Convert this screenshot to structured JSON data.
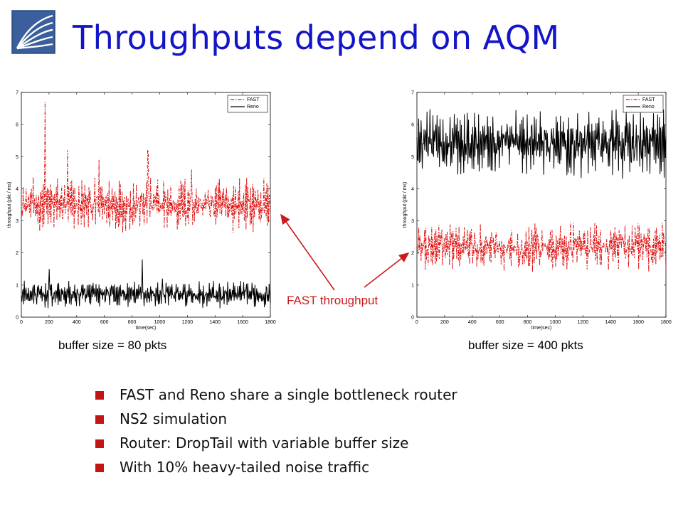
{
  "slide": {
    "title": "Throughputs depend on AQM",
    "annotation": "FAST throughput",
    "captions": [
      "buffer size = 80 pkts",
      "buffer size = 400 pkts"
    ],
    "bullets": [
      "FAST and Reno share a single bottleneck router",
      "NS2 simulation",
      "Router: DropTail with variable buffer size",
      "With 10% heavy-tailed noise traffic"
    ],
    "colors": {
      "title": "#1414c8",
      "bullet": "#c41414",
      "annotation": "#cc1a1a",
      "fast": "#e01010",
      "reno": "#000000"
    }
  },
  "chart_data": [
    {
      "type": "line",
      "caption": "buffer size = 80 pkts",
      "xlabel": "time(sec)",
      "ylabel": "throughput (pkt / ms)",
      "xlim": [
        0,
        1800
      ],
      "ylim": [
        0,
        7
      ],
      "xticks": [
        "0",
        "200",
        "400",
        "600",
        "800",
        "1000",
        "1200",
        "1400",
        "1600",
        "1800"
      ],
      "yticks": [
        "0",
        "1",
        "2",
        "3",
        "4",
        "5",
        "6",
        "7"
      ],
      "legend": "top-right",
      "grid": false,
      "series": [
        {
          "name": "FAST",
          "style": "dash-dot",
          "color": "#e01010",
          "mean": 3.5,
          "band": [
            2.7,
            4.3
          ],
          "spikes": [
            [
              170,
              6.7
            ],
            [
              335,
              5.2
            ],
            [
              560,
              4.9
            ],
            [
              915,
              5.2
            ],
            [
              1230,
              4.6
            ]
          ]
        },
        {
          "name": "Reno",
          "style": "solid",
          "color": "#000000",
          "mean": 0.7,
          "band": [
            0.3,
            1.1
          ],
          "spikes": [
            [
              200,
              1.5
            ],
            [
              875,
              1.8
            ],
            [
              1020,
              1.2
            ]
          ]
        }
      ]
    },
    {
      "type": "line",
      "caption": "buffer size = 400 pkts",
      "xlabel": "time(sec)",
      "ylabel": "throughput (pkt / ms)",
      "xlim": [
        0,
        1800
      ],
      "ylim": [
        0,
        7
      ],
      "xticks": [
        "0",
        "200",
        "400",
        "600",
        "800",
        "1000",
        "1200",
        "1400",
        "1600",
        "1800"
      ],
      "yticks": [
        "0",
        "1",
        "2",
        "3",
        "4",
        "5",
        "6",
        "7"
      ],
      "legend": "top-right",
      "grid": false,
      "series": [
        {
          "name": "FAST",
          "style": "dash-dot",
          "color": "#e01010",
          "mean": 2.2,
          "band": [
            1.5,
            3.0
          ],
          "spikes": []
        },
        {
          "name": "Reno",
          "style": "solid",
          "color": "#000000",
          "mean": 5.4,
          "band": [
            4.2,
            6.2
          ],
          "spikes": []
        }
      ]
    }
  ]
}
